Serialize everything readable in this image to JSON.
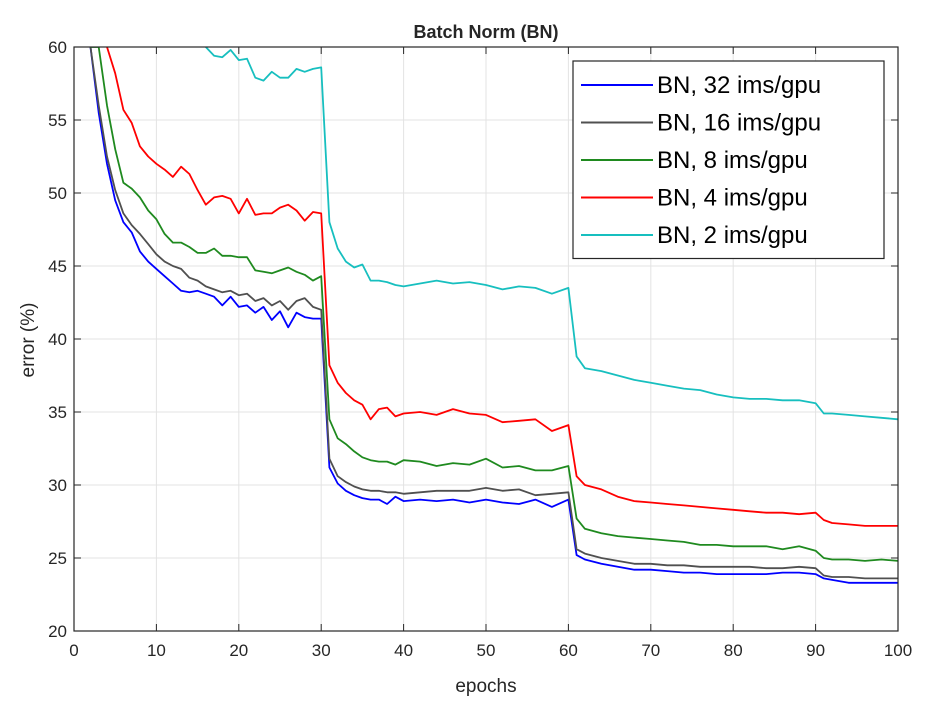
{
  "chart_data": {
    "type": "line",
    "title": "Batch Norm (BN)",
    "xlabel": "epochs",
    "ylabel": "error (%)",
    "xlim": [
      0,
      100
    ],
    "ylim": [
      20,
      60
    ],
    "xticks": [
      0,
      10,
      20,
      30,
      40,
      50,
      60,
      70,
      80,
      90,
      100
    ],
    "yticks": [
      20,
      25,
      30,
      35,
      40,
      45,
      50,
      55,
      60
    ],
    "grid": true,
    "legend_position": "top-right",
    "series": [
      {
        "name": "BN, 32 ims/gpu",
        "color": "#0000ff",
        "x": [
          2,
          3,
          4,
          5,
          6,
          7,
          8,
          9,
          10,
          11,
          12,
          13,
          14,
          15,
          16,
          17,
          18,
          19,
          20,
          21,
          22,
          23,
          24,
          25,
          26,
          27,
          28,
          29,
          30,
          31,
          32,
          33,
          34,
          35,
          36,
          37,
          38,
          39,
          40,
          42,
          44,
          46,
          48,
          50,
          52,
          54,
          56,
          58,
          60,
          61,
          62,
          64,
          66,
          68,
          70,
          72,
          74,
          76,
          78,
          80,
          82,
          84,
          86,
          88,
          90,
          91,
          92,
          94,
          96,
          98,
          100
        ],
        "y": [
          60,
          55.5,
          52,
          49.5,
          48,
          47.3,
          46,
          45.3,
          44.8,
          44.3,
          43.8,
          43.3,
          43.2,
          43.3,
          43.1,
          42.9,
          42.3,
          42.9,
          42.2,
          42.3,
          41.8,
          42.2,
          41.3,
          41.9,
          40.8,
          41.8,
          41.5,
          41.4,
          41.4,
          31.2,
          30.1,
          29.6,
          29.3,
          29.1,
          29.0,
          29.0,
          28.7,
          29.2,
          28.9,
          29.0,
          28.9,
          29.0,
          28.8,
          29.0,
          28.8,
          28.7,
          29.0,
          28.5,
          29.0,
          25.2,
          24.9,
          24.6,
          24.4,
          24.2,
          24.2,
          24.1,
          24.0,
          24.0,
          23.9,
          23.9,
          23.9,
          23.9,
          24.0,
          24.0,
          23.9,
          23.6,
          23.5,
          23.3,
          23.3,
          23.3,
          23.3
        ]
      },
      {
        "name": "BN, 16 ims/gpu",
        "color": "#505050",
        "x": [
          2,
          3,
          4,
          5,
          6,
          7,
          8,
          9,
          10,
          11,
          12,
          13,
          14,
          15,
          16,
          17,
          18,
          19,
          20,
          21,
          22,
          23,
          24,
          25,
          26,
          27,
          28,
          29,
          30,
          31,
          32,
          33,
          34,
          35,
          36,
          37,
          38,
          39,
          40,
          42,
          44,
          46,
          48,
          50,
          52,
          54,
          56,
          58,
          60,
          61,
          62,
          64,
          66,
          68,
          70,
          72,
          74,
          76,
          78,
          80,
          82,
          84,
          86,
          88,
          90,
          91,
          92,
          94,
          96,
          98,
          100
        ],
        "y": [
          60,
          56,
          52.5,
          50.2,
          48.6,
          47.8,
          47.2,
          46.5,
          45.8,
          45.3,
          45.0,
          44.8,
          44.2,
          44.0,
          43.6,
          43.4,
          43.2,
          43.3,
          43.0,
          43.1,
          42.6,
          42.8,
          42.3,
          42.6,
          42.0,
          42.6,
          42.8,
          42.2,
          42.0,
          31.8,
          30.6,
          30.2,
          29.9,
          29.7,
          29.6,
          29.6,
          29.5,
          29.5,
          29.4,
          29.5,
          29.6,
          29.6,
          29.6,
          29.8,
          29.6,
          29.7,
          29.3,
          29.4,
          29.5,
          25.6,
          25.3,
          25.0,
          24.8,
          24.6,
          24.6,
          24.5,
          24.5,
          24.4,
          24.4,
          24.4,
          24.4,
          24.3,
          24.3,
          24.4,
          24.3,
          23.8,
          23.7,
          23.7,
          23.6,
          23.6,
          23.6
        ]
      },
      {
        "name": "BN, 8 ims/gpu",
        "color": "#1f8a1f",
        "x": [
          2,
          3,
          4,
          5,
          6,
          7,
          8,
          9,
          10,
          11,
          12,
          13,
          14,
          15,
          16,
          17,
          18,
          19,
          20,
          21,
          22,
          23,
          24,
          25,
          26,
          27,
          28,
          29,
          30,
          31,
          32,
          33,
          34,
          35,
          36,
          37,
          38,
          39,
          40,
          42,
          44,
          46,
          48,
          50,
          52,
          54,
          56,
          58,
          60,
          61,
          62,
          64,
          66,
          68,
          70,
          72,
          74,
          76,
          78,
          80,
          82,
          84,
          86,
          88,
          90,
          91,
          92,
          94,
          96,
          98,
          100
        ],
        "y": [
          60,
          60,
          56,
          53,
          50.7,
          50.3,
          49.7,
          48.8,
          48.2,
          47.2,
          46.6,
          46.6,
          46.3,
          45.9,
          45.9,
          46.2,
          45.7,
          45.7,
          45.6,
          45.6,
          44.7,
          44.6,
          44.5,
          44.7,
          44.9,
          44.6,
          44.4,
          44.0,
          44.3,
          34.5,
          33.2,
          32.8,
          32.3,
          31.9,
          31.7,
          31.6,
          31.6,
          31.4,
          31.7,
          31.6,
          31.3,
          31.5,
          31.4,
          31.8,
          31.2,
          31.3,
          31.0,
          31.0,
          31.3,
          27.7,
          27.0,
          26.7,
          26.5,
          26.4,
          26.3,
          26.2,
          26.1,
          25.9,
          25.9,
          25.8,
          25.8,
          25.8,
          25.6,
          25.8,
          25.5,
          25.0,
          24.9,
          24.9,
          24.8,
          24.9,
          24.8
        ]
      },
      {
        "name": "BN, 4 ims/gpu",
        "color": "#ff0000",
        "x": [
          4,
          5,
          6,
          7,
          8,
          9,
          10,
          11,
          12,
          13,
          14,
          15,
          16,
          17,
          18,
          19,
          20,
          21,
          22,
          23,
          24,
          25,
          26,
          27,
          28,
          29,
          30,
          31,
          32,
          33,
          34,
          35,
          36,
          37,
          38,
          39,
          40,
          42,
          44,
          46,
          48,
          50,
          52,
          54,
          56,
          58,
          60,
          61,
          62,
          64,
          66,
          68,
          70,
          72,
          74,
          76,
          78,
          80,
          82,
          84,
          86,
          88,
          90,
          91,
          92,
          94,
          96,
          98,
          100
        ],
        "y": [
          60,
          58.2,
          55.7,
          54.8,
          53.2,
          52.5,
          52.0,
          51.6,
          51.1,
          51.8,
          51.3,
          50.2,
          49.2,
          49.7,
          49.8,
          49.6,
          48.6,
          49.6,
          48.5,
          48.6,
          48.6,
          49.0,
          49.2,
          48.8,
          48.1,
          48.7,
          48.6,
          38.2,
          37.0,
          36.3,
          35.8,
          35.5,
          34.5,
          35.2,
          35.3,
          34.7,
          34.9,
          35.0,
          34.8,
          35.2,
          34.9,
          34.8,
          34.3,
          34.4,
          34.5,
          33.7,
          34.1,
          30.6,
          30.0,
          29.7,
          29.2,
          28.9,
          28.8,
          28.7,
          28.6,
          28.5,
          28.4,
          28.3,
          28.2,
          28.1,
          28.1,
          28.0,
          28.1,
          27.6,
          27.4,
          27.3,
          27.2,
          27.2,
          27.2
        ]
      },
      {
        "name": "BN, 2 ims/gpu",
        "color": "#17bfbf",
        "x": [
          16,
          17,
          18,
          19,
          20,
          21,
          22,
          23,
          24,
          25,
          26,
          27,
          28,
          29,
          30,
          31,
          32,
          33,
          34,
          35,
          36,
          37,
          38,
          39,
          40,
          42,
          44,
          46,
          48,
          50,
          52,
          54,
          56,
          58,
          60,
          61,
          62,
          64,
          66,
          68,
          70,
          72,
          74,
          76,
          78,
          80,
          82,
          84,
          86,
          88,
          90,
          91,
          92,
          94,
          96,
          98,
          100
        ],
        "y": [
          60,
          59.4,
          59.3,
          59.8,
          59.1,
          59.2,
          57.9,
          57.7,
          58.3,
          57.9,
          57.9,
          58.5,
          58.3,
          58.5,
          58.6,
          48.0,
          46.2,
          45.3,
          44.9,
          45.1,
          44.0,
          44.0,
          43.9,
          43.7,
          43.6,
          43.8,
          44.0,
          43.8,
          43.9,
          43.7,
          43.4,
          43.6,
          43.5,
          43.1,
          43.5,
          38.8,
          38.0,
          37.8,
          37.5,
          37.2,
          37.0,
          36.8,
          36.6,
          36.5,
          36.2,
          36.0,
          35.9,
          35.9,
          35.8,
          35.8,
          35.6,
          34.9,
          34.9,
          34.8,
          34.7,
          34.6,
          34.5
        ]
      }
    ]
  }
}
